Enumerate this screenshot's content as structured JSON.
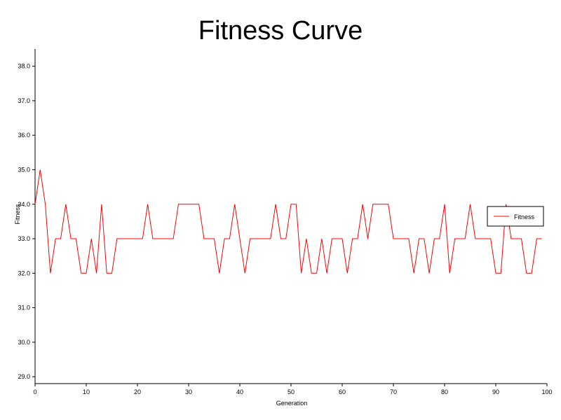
{
  "chart_data": {
    "type": "line",
    "title": "Fitness Curve",
    "xlabel": "Generation",
    "ylabel": "Fitness",
    "xlim": [
      0,
      100
    ],
    "ylim": [
      28.8,
      38.5
    ],
    "x_ticks": [
      0,
      10,
      20,
      30,
      40,
      50,
      60,
      70,
      80,
      90,
      100
    ],
    "x_tick_labels": [
      "0",
      "10",
      "20",
      "30",
      "40",
      "50",
      "60",
      "70",
      "80",
      "90",
      "100"
    ],
    "y_ticks": [
      29,
      30,
      31,
      32,
      33,
      34,
      35,
      36,
      37,
      38
    ],
    "y_tick_labels": [
      "29.0",
      "30.0",
      "31.0",
      "32.0",
      "33.0",
      "34.0",
      "35.0",
      "36.0",
      "37.0",
      "38.0"
    ],
    "grid": false,
    "legend": {
      "position": "right",
      "entries": [
        "Fitness"
      ]
    },
    "series": [
      {
        "name": "Fitness",
        "color": "#ff0000",
        "x": [
          0,
          1,
          2,
          3,
          4,
          5,
          6,
          7,
          8,
          9,
          10,
          11,
          12,
          13,
          14,
          15,
          16,
          17,
          18,
          19,
          20,
          21,
          22,
          23,
          24,
          25,
          26,
          27,
          28,
          29,
          30,
          31,
          32,
          33,
          34,
          35,
          36,
          37,
          38,
          39,
          40,
          41,
          42,
          43,
          44,
          45,
          46,
          47,
          48,
          49,
          50,
          51,
          52,
          53,
          54,
          55,
          56,
          57,
          58,
          59,
          60,
          61,
          62,
          63,
          64,
          65,
          66,
          67,
          68,
          69,
          70,
          71,
          72,
          73,
          74,
          75,
          76,
          77,
          78,
          79,
          80,
          81,
          82,
          83,
          84,
          85,
          86,
          87,
          88,
          89,
          90,
          91,
          92,
          93,
          94,
          95,
          96,
          97,
          98,
          99
        ],
        "values": [
          34,
          35,
          34,
          32,
          33,
          33,
          34,
          33,
          33,
          32,
          32,
          33,
          32,
          34,
          32,
          32,
          33,
          33,
          33,
          33,
          33,
          33,
          34,
          33,
          33,
          33,
          33,
          33,
          34,
          34,
          34,
          34,
          34,
          33,
          33,
          33,
          32,
          33,
          33,
          34,
          33,
          32,
          33,
          33,
          33,
          33,
          33,
          34,
          33,
          33,
          34,
          34,
          32,
          33,
          32,
          32,
          33,
          32,
          33,
          33,
          33,
          32,
          33,
          33,
          34,
          33,
          34,
          34,
          34,
          34,
          33,
          33,
          33,
          33,
          32,
          33,
          33,
          32,
          33,
          33,
          34,
          32,
          33,
          33,
          33,
          34,
          33,
          33,
          33,
          33,
          32,
          32,
          34,
          33,
          33,
          33,
          32,
          32,
          33,
          33
        ]
      }
    ]
  }
}
